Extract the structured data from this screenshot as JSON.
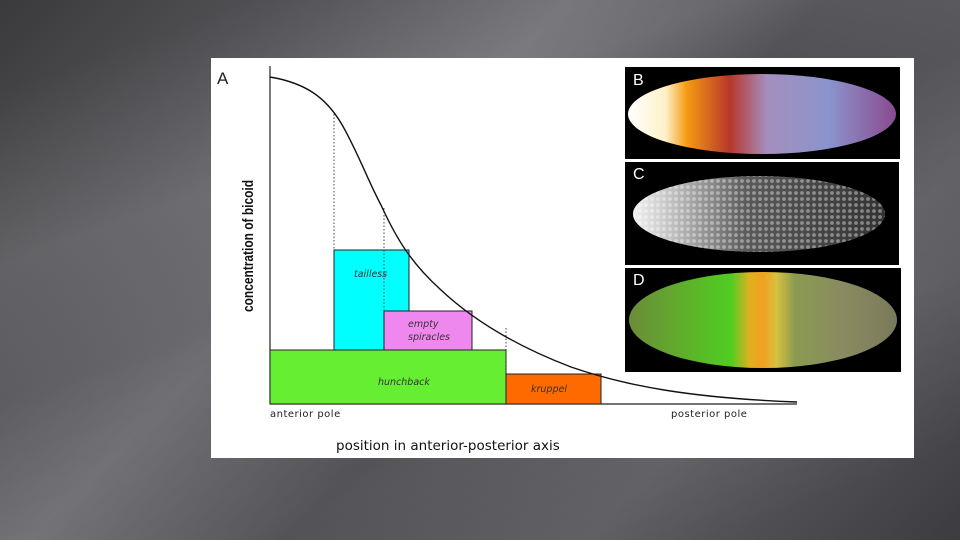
{
  "figure": {
    "graph": {
      "panel_letter": "A",
      "y_axis_label": "concentration of bicoid",
      "x_axis_label": "position in anterior-posterior axis",
      "anterior_label": "anterior pole",
      "posterior_label": "posterior pole",
      "gene_domains": [
        {
          "name": "tailless",
          "color": "#00ffff"
        },
        {
          "name": "empty spiracles",
          "line1": "empty",
          "line2": "spiracles",
          "color": "#ee88ee"
        },
        {
          "name": "hunchback",
          "color": "#66ee33"
        },
        {
          "name": "kruppel",
          "color": "#ff6a00"
        }
      ]
    },
    "embryo_images": [
      {
        "letter": "B",
        "stain": "bicoid gradient color map"
      },
      {
        "letter": "C",
        "stain": "bicoid nuclear staining"
      },
      {
        "letter": "D",
        "stain": "gap gene expression bands"
      }
    ]
  }
}
